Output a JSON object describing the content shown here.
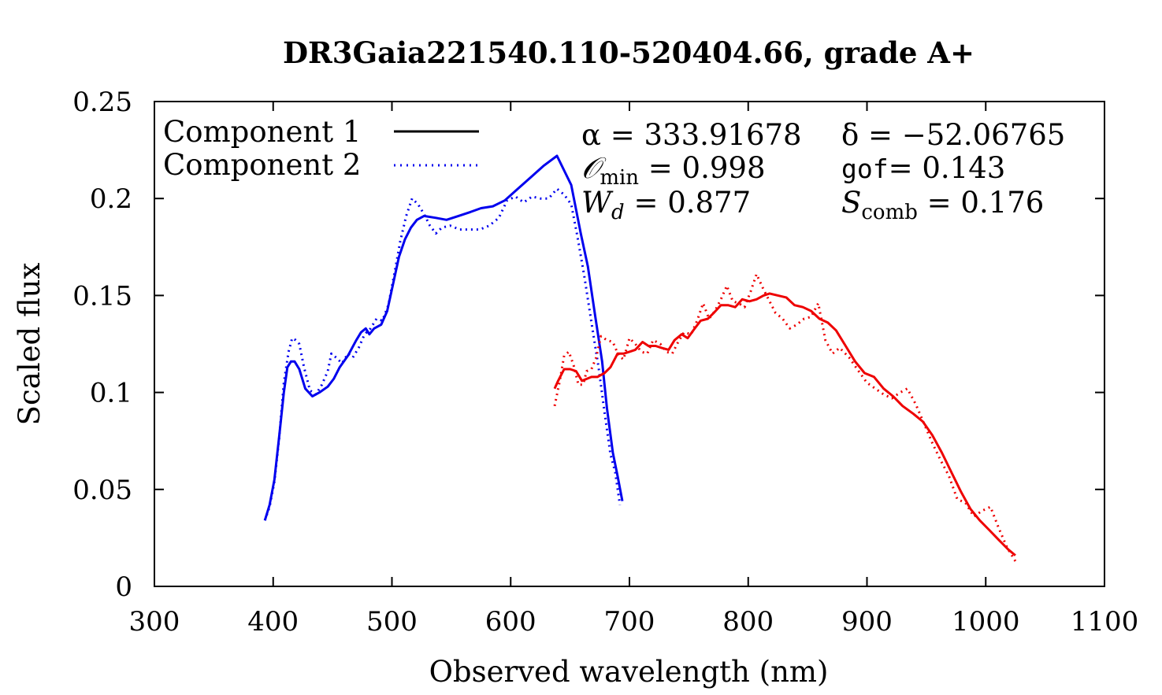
{
  "chart_data": {
    "type": "line",
    "title": "DR3Gaia221540.110-520404.66, grade A+",
    "xlabel": "Observed wavelength (nm)",
    "ylabel": "Scaled flux",
    "xlim": [
      300,
      1100
    ],
    "ylim": [
      0,
      0.25
    ],
    "xticks": [
      300,
      400,
      500,
      600,
      700,
      800,
      900,
      1000,
      1100
    ],
    "yticks": [
      0,
      0.05,
      0.1,
      0.15,
      0.2,
      0.25
    ],
    "xtick_labels": [
      "300",
      "400",
      "500",
      "600",
      "700",
      "800",
      "900",
      "1000",
      "1100"
    ],
    "ytick_labels": [
      "0",
      "0.05",
      "0.1",
      "0.15",
      "0.2",
      "0.25"
    ],
    "grid": false,
    "legend": {
      "placement": "top-left",
      "entries": [
        {
          "label": "Component 1",
          "style": "solid"
        },
        {
          "label": "Component 2",
          "style": "dotted"
        }
      ]
    },
    "annotations": {
      "alpha": "α = 333.91678",
      "delta": "δ = −52.06765",
      "omin_sym": "𝒪",
      "omin_sub": "min",
      "omin_val": " = 0.998",
      "gof_word": "gof",
      "gof_val": "= 0.143",
      "wd_sym": "W",
      "wd_sub": "d",
      "wd_val": " = 0.877",
      "scomb_sym": "S",
      "scomb_sub": "comb",
      "scomb_val": " = 0.176"
    },
    "series": [
      {
        "group": "BP",
        "component": 1,
        "color": "#0000ee",
        "style": "solid",
        "points": [
          [
            393,
            0.034
          ],
          [
            397,
            0.042
          ],
          [
            401,
            0.055
          ],
          [
            405,
            0.077
          ],
          [
            409,
            0.1
          ],
          [
            412,
            0.113
          ],
          [
            415,
            0.116
          ],
          [
            418,
            0.116
          ],
          [
            422,
            0.112
          ],
          [
            427,
            0.102
          ],
          [
            433,
            0.098
          ],
          [
            439,
            0.1
          ],
          [
            446,
            0.103
          ],
          [
            451,
            0.107
          ],
          [
            456,
            0.113
          ],
          [
            463,
            0.119
          ],
          [
            470,
            0.127
          ],
          [
            474,
            0.131
          ],
          [
            478,
            0.133
          ],
          [
            481,
            0.13
          ],
          [
            485,
            0.133
          ],
          [
            491,
            0.135
          ],
          [
            496,
            0.142
          ],
          [
            501,
            0.156
          ],
          [
            506,
            0.17
          ],
          [
            511,
            0.179
          ],
          [
            516,
            0.185
          ],
          [
            521,
            0.189
          ],
          [
            527,
            0.191
          ],
          [
            537,
            0.19
          ],
          [
            546,
            0.189
          ],
          [
            556,
            0.191
          ],
          [
            566,
            0.193
          ],
          [
            575,
            0.195
          ],
          [
            585,
            0.196
          ],
          [
            595,
            0.199
          ],
          [
            606,
            0.205
          ],
          [
            617,
            0.211
          ],
          [
            628,
            0.217
          ],
          [
            639,
            0.222
          ],
          [
            651,
            0.207
          ],
          [
            659,
            0.182
          ],
          [
            665,
            0.165
          ],
          [
            671,
            0.14
          ],
          [
            677,
            0.116
          ],
          [
            681,
            0.092
          ],
          [
            686,
            0.069
          ],
          [
            690,
            0.057
          ],
          [
            694,
            0.044
          ]
        ]
      },
      {
        "group": "BP",
        "component": 2,
        "color": "#0000ee",
        "style": "dotted",
        "points": [
          [
            393,
            0.034
          ],
          [
            397,
            0.041
          ],
          [
            401,
            0.054
          ],
          [
            405,
            0.076
          ],
          [
            409,
            0.105
          ],
          [
            413,
            0.121
          ],
          [
            416,
            0.128
          ],
          [
            419,
            0.127
          ],
          [
            422,
            0.125
          ],
          [
            426,
            0.113
          ],
          [
            431,
            0.101
          ],
          [
            436,
            0.099
          ],
          [
            441,
            0.104
          ],
          [
            446,
            0.111
          ],
          [
            449,
            0.12
          ],
          [
            453,
            0.118
          ],
          [
            458,
            0.115
          ],
          [
            463,
            0.12
          ],
          [
            467,
            0.118
          ],
          [
            472,
            0.123
          ],
          [
            477,
            0.13
          ],
          [
            482,
            0.133
          ],
          [
            487,
            0.138
          ],
          [
            492,
            0.137
          ],
          [
            497,
            0.145
          ],
          [
            502,
            0.161
          ],
          [
            507,
            0.178
          ],
          [
            512,
            0.191
          ],
          [
            517,
            0.2
          ],
          [
            522,
            0.197
          ],
          [
            527,
            0.192
          ],
          [
            532,
            0.186
          ],
          [
            537,
            0.182
          ],
          [
            542,
            0.185
          ],
          [
            549,
            0.186
          ],
          [
            557,
            0.184
          ],
          [
            566,
            0.184
          ],
          [
            574,
            0.184
          ],
          [
            582,
            0.186
          ],
          [
            590,
            0.19
          ],
          [
            597,
            0.199
          ],
          [
            604,
            0.201
          ],
          [
            611,
            0.198
          ],
          [
            618,
            0.201
          ],
          [
            625,
            0.2
          ],
          [
            632,
            0.2
          ],
          [
            639,
            0.205
          ],
          [
            645,
            0.202
          ],
          [
            651,
            0.197
          ],
          [
            656,
            0.181
          ],
          [
            662,
            0.16
          ],
          [
            668,
            0.136
          ],
          [
            674,
            0.113
          ],
          [
            679,
            0.09
          ],
          [
            684,
            0.068
          ],
          [
            688,
            0.059
          ],
          [
            692,
            0.042
          ]
        ]
      },
      {
        "group": "RP",
        "component": 1,
        "color": "#ee0000",
        "style": "solid",
        "points": [
          [
            637,
            0.102
          ],
          [
            640,
            0.106
          ],
          [
            645,
            0.112
          ],
          [
            650,
            0.112
          ],
          [
            655,
            0.111
          ],
          [
            660,
            0.106
          ],
          [
            664,
            0.107
          ],
          [
            668,
            0.108
          ],
          [
            673,
            0.108
          ],
          [
            679,
            0.11
          ],
          [
            684,
            0.113
          ],
          [
            690,
            0.12
          ],
          [
            695,
            0.12
          ],
          [
            700,
            0.121
          ],
          [
            705,
            0.122
          ],
          [
            711,
            0.126
          ],
          [
            716,
            0.124
          ],
          [
            722,
            0.124
          ],
          [
            727,
            0.123
          ],
          [
            733,
            0.122
          ],
          [
            738,
            0.127
          ],
          [
            744,
            0.13
          ],
          [
            749,
            0.128
          ],
          [
            755,
            0.133
          ],
          [
            760,
            0.137
          ],
          [
            766,
            0.138
          ],
          [
            771,
            0.141
          ],
          [
            777,
            0.145
          ],
          [
            783,
            0.145
          ],
          [
            789,
            0.144
          ],
          [
            795,
            0.148
          ],
          [
            801,
            0.147
          ],
          [
            807,
            0.148
          ],
          [
            813,
            0.15
          ],
          [
            818,
            0.151
          ],
          [
            825,
            0.15
          ],
          [
            832,
            0.149
          ],
          [
            839,
            0.145
          ],
          [
            846,
            0.144
          ],
          [
            853,
            0.142
          ],
          [
            860,
            0.138
          ],
          [
            867,
            0.136
          ],
          [
            874,
            0.132
          ],
          [
            882,
            0.124
          ],
          [
            890,
            0.116
          ],
          [
            898,
            0.11
          ],
          [
            906,
            0.108
          ],
          [
            914,
            0.102
          ],
          [
            922,
            0.098
          ],
          [
            930,
            0.093
          ],
          [
            939,
            0.089
          ],
          [
            947,
            0.085
          ],
          [
            955,
            0.078
          ],
          [
            963,
            0.069
          ],
          [
            971,
            0.059
          ],
          [
            979,
            0.049
          ],
          [
            987,
            0.04
          ],
          [
            995,
            0.034
          ],
          [
            1003,
            0.029
          ],
          [
            1011,
            0.024
          ],
          [
            1019,
            0.019
          ],
          [
            1025,
            0.016
          ]
        ]
      },
      {
        "group": "RP",
        "component": 2,
        "color": "#ee0000",
        "style": "dotted",
        "points": [
          [
            637,
            0.093
          ],
          [
            641,
            0.105
          ],
          [
            645,
            0.119
          ],
          [
            649,
            0.121
          ],
          [
            653,
            0.114
          ],
          [
            657,
            0.104
          ],
          [
            661,
            0.104
          ],
          [
            664,
            0.111
          ],
          [
            668,
            0.112
          ],
          [
            672,
            0.118
          ],
          [
            676,
            0.129
          ],
          [
            681,
            0.127
          ],
          [
            686,
            0.126
          ],
          [
            691,
            0.119
          ],
          [
            695,
            0.117
          ],
          [
            700,
            0.128
          ],
          [
            705,
            0.125
          ],
          [
            710,
            0.121
          ],
          [
            715,
            0.12
          ],
          [
            720,
            0.127
          ],
          [
            726,
            0.125
          ],
          [
            731,
            0.121
          ],
          [
            736,
            0.12
          ],
          [
            741,
            0.126
          ],
          [
            746,
            0.131
          ],
          [
            752,
            0.13
          ],
          [
            757,
            0.137
          ],
          [
            762,
            0.146
          ],
          [
            767,
            0.138
          ],
          [
            772,
            0.142
          ],
          [
            777,
            0.148
          ],
          [
            782,
            0.155
          ],
          [
            787,
            0.147
          ],
          [
            792,
            0.146
          ],
          [
            797,
            0.144
          ],
          [
            802,
            0.152
          ],
          [
            807,
            0.161
          ],
          [
            813,
            0.153
          ],
          [
            818,
            0.147
          ],
          [
            823,
            0.141
          ],
          [
            829,
            0.138
          ],
          [
            835,
            0.133
          ],
          [
            841,
            0.135
          ],
          [
            847,
            0.138
          ],
          [
            853,
            0.139
          ],
          [
            859,
            0.146
          ],
          [
            865,
            0.127
          ],
          [
            871,
            0.12
          ],
          [
            877,
            0.123
          ],
          [
            885,
            0.118
          ],
          [
            893,
            0.111
          ],
          [
            900,
            0.105
          ],
          [
            907,
            0.102
          ],
          [
            914,
            0.099
          ],
          [
            921,
            0.097
          ],
          [
            928,
            0.1
          ],
          [
            934,
            0.102
          ],
          [
            941,
            0.094
          ],
          [
            948,
            0.084
          ],
          [
            955,
            0.074
          ],
          [
            962,
            0.065
          ],
          [
            969,
            0.057
          ],
          [
            976,
            0.045
          ],
          [
            983,
            0.043
          ],
          [
            990,
            0.036
          ],
          [
            997,
            0.039
          ],
          [
            1004,
            0.041
          ],
          [
            1011,
            0.03
          ],
          [
            1018,
            0.02
          ],
          [
            1025,
            0.013
          ]
        ]
      }
    ]
  }
}
